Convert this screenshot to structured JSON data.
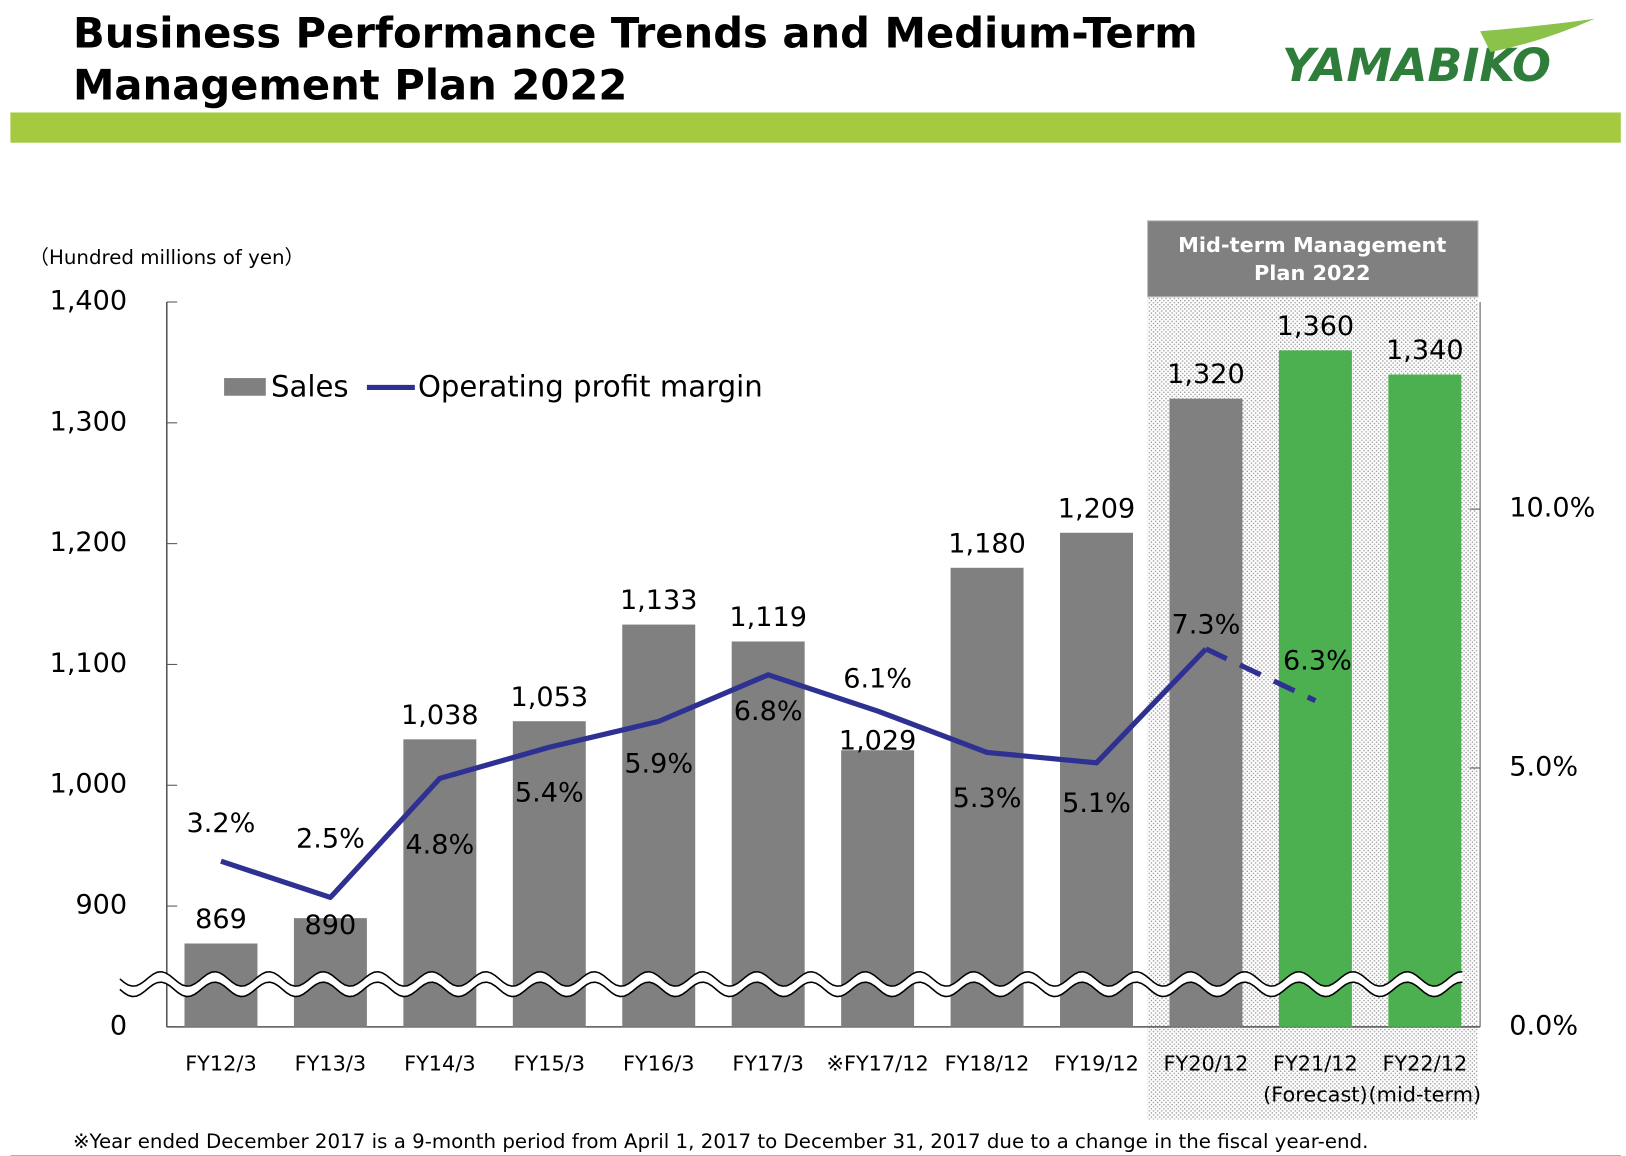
{
  "header": {
    "title_line1": "Business Performance Trends and Medium-Term",
    "title_line2": "Management Plan 2022",
    "logo": "YAMABIKO"
  },
  "footnote": "※Year ended December 2017 is a 9-month period from April 1, 2017 to December 31, 2017 due to a change in the fiscal year-end.",
  "chart_data": {
    "type": "bar_line",
    "y_axis_label": "（Hundred millions of yen）",
    "plan_box_label": "Mid-term Management Plan 2022",
    "categories": [
      "FY12/3",
      "FY13/3",
      "FY14/3",
      "FY15/3",
      "FY16/3",
      "FY17/3",
      "※FY17/12",
      "FY18/12",
      "FY19/12",
      "FY20/12",
      "FY21/12",
      "FY22/12"
    ],
    "category_notes": [
      null,
      null,
      null,
      null,
      null,
      null,
      null,
      null,
      null,
      null,
      "(Forecast)",
      "(mid-term)"
    ],
    "ylim": [
      0,
      1400
    ],
    "axis_break": [
      0,
      800
    ],
    "yticks": [
      0,
      900,
      {
        "value": 1000,
        "label": "1,000"
      },
      {
        "value": 1100,
        "label": "1,100"
      },
      {
        "value": 1200,
        "label": "1,200"
      },
      {
        "value": 1300,
        "label": "1,300"
      },
      {
        "value": 1400,
        "label": "1,400"
      }
    ],
    "y2lim": [
      0,
      14
    ],
    "y2ticks": [
      {
        "value": 0,
        "label": "0.0%"
      },
      {
        "value": 5,
        "label": "5.0%"
      },
      {
        "value": 10,
        "label": "10.0%"
      }
    ],
    "series": [
      {
        "name": "Sales",
        "type": "bar",
        "color": "#808080",
        "colors": [
          "#808080",
          "#808080",
          "#808080",
          "#808080",
          "#808080",
          "#808080",
          "#808080",
          "#808080",
          "#808080",
          "#808080",
          "#4caf50",
          "#4caf50"
        ],
        "values": [
          869,
          890,
          1038,
          1053,
          1133,
          1119,
          1029,
          1180,
          1209,
          1320,
          1360,
          1340
        ],
        "value_labels": [
          "869",
          "890",
          "1,038",
          "1,053",
          "1,133",
          "1,119",
          "1,029",
          "1,180",
          "1,209",
          "1,320",
          "1,360",
          "1,340"
        ]
      },
      {
        "name": "Operating profit margin",
        "type": "line",
        "axis": "y2",
        "color": "#2e3192",
        "dashed_from": 9,
        "values": [
          3.2,
          2.5,
          4.8,
          5.4,
          5.9,
          6.8,
          6.1,
          5.3,
          5.1,
          7.3,
          6.3,
          null
        ],
        "value_labels": [
          "3.2%",
          "2.5%",
          "4.8%",
          "5.4%",
          "5.9%",
          "6.8%",
          "6.1%",
          "5.3%",
          "5.1%",
          "7.3%",
          "6.3%",
          null
        ]
      }
    ]
  }
}
